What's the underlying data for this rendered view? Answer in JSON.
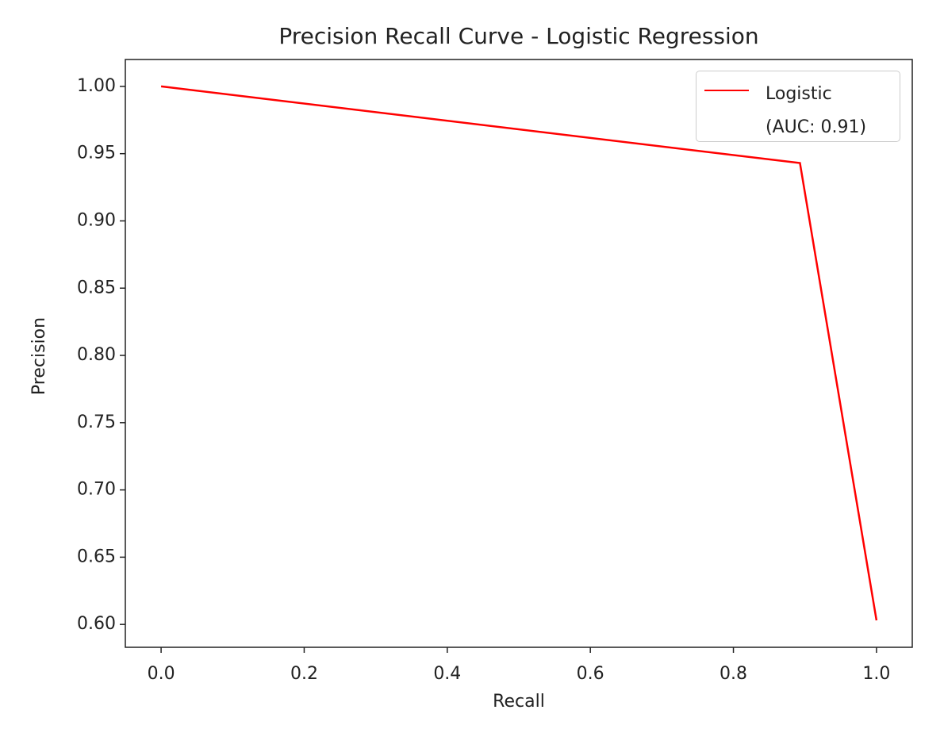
{
  "chart_data": {
    "type": "line",
    "title": "Precision Recall Curve - Logistic Regression",
    "x_label": "Recall",
    "y_label": "Precision",
    "x": [
      0.0,
      0.893,
      1.0
    ],
    "series": [
      {
        "name": "Logistic\n(AUC: 0.91)",
        "color": "#ff0000",
        "values": [
          1.0,
          0.943,
          0.603
        ]
      }
    ],
    "xlim": [
      -0.05,
      1.05
    ],
    "xticks": [
      {
        "value": 0,
        "label": "0.0"
      },
      0.2,
      0.4,
      0.6,
      0.8,
      {
        "value": 1,
        "label": "1.0"
      }
    ],
    "ylim": [
      0.583,
      1.02
    ],
    "yticks": [
      {
        "value": 0.6,
        "label": "0.60"
      },
      0.65,
      {
        "value": 0.7,
        "label": "0.70"
      },
      0.75,
      {
        "value": 0.8,
        "label": "0.80"
      },
      0.85,
      {
        "value": 0.9,
        "label": "0.90"
      },
      0.95,
      {
        "value": 1,
        "label": "1.00"
      }
    ],
    "legend": "upper right",
    "grid": false
  }
}
